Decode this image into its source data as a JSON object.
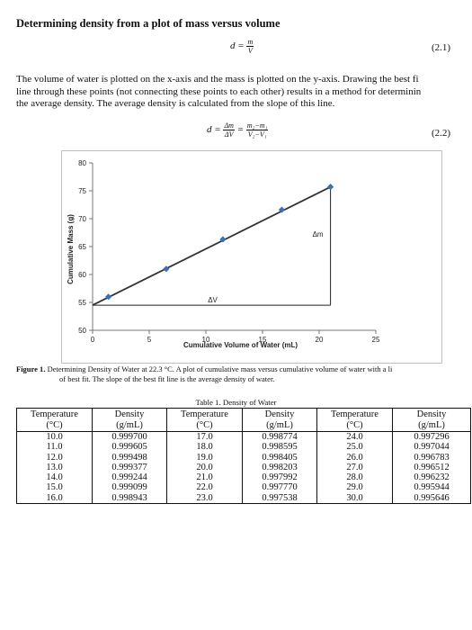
{
  "heading": "Determining density from a plot of mass versus volume",
  "eq1": {
    "lhs": "d =",
    "num": "m",
    "den": "V",
    "number": "(2.1)"
  },
  "paragraph": [
    "The volume of water is plotted on the x-axis and the mass is plotted on the y-axis. Drawing the best fi",
    "line through these points (not connecting these points to each other) results in a method for determinin",
    "the average density. The average density is calculated from the slope of this line."
  ],
  "eq2": {
    "lhs": "d =",
    "num1": "Δm",
    "den1": "ΔV",
    "eqsign": "=",
    "num2": "m₂−m₁",
    "den2": "V₂−V₁",
    "number": "(2.2)"
  },
  "chart_data": {
    "type": "scatter",
    "xlabel": "Cumulative Volume of Water (mL)",
    "ylabel": "Cumulative Mass (g)",
    "xlim": [
      0,
      25
    ],
    "ylim": [
      50,
      80
    ],
    "xticks": [
      0,
      5,
      10,
      15,
      20,
      25
    ],
    "yticks": [
      50,
      55,
      60,
      65,
      70,
      75,
      80
    ],
    "grid": false,
    "points": [
      {
        "x": 1.4,
        "y": 56.0
      },
      {
        "x": 6.5,
        "y": 61.0
      },
      {
        "x": 11.5,
        "y": 66.3
      },
      {
        "x": 16.7,
        "y": 71.6
      },
      {
        "x": 21.0,
        "y": 75.7
      }
    ],
    "fit_line": {
      "x": [
        0,
        21.0
      ],
      "y": [
        54.5,
        75.7
      ]
    },
    "triangle": {
      "x1": 0,
      "x2": 21.0,
      "y1": 54.5,
      "y2": 75.7
    },
    "annotations": {
      "dv": "ΔV",
      "dm": "Δm"
    }
  },
  "caption": {
    "label": "Figure 1.",
    "line1": " Determining Density of Water at 22.3 °C. A plot of cumulative mass versus cumulative volume of water with a li",
    "line2": "of best fit. The slope of the best fit line is the average density of water."
  },
  "table": {
    "title": "Table 1. Density of Water",
    "headers": [
      {
        "temp": [
          "Temperature",
          "(°C)"
        ],
        "dens": [
          "Density",
          "(g/mL)"
        ]
      },
      {
        "temp": [
          "Temperature",
          "(°C)"
        ],
        "dens": [
          "Density",
          "(g/mL)"
        ]
      },
      {
        "temp": [
          "Temperature",
          "(°C)"
        ],
        "dens": [
          "Density",
          "(g/mL)"
        ]
      }
    ],
    "groups": [
      {
        "temps": [
          "10.0",
          "11.0",
          "12.0",
          "13.0",
          "14.0",
          "15.0",
          "16.0"
        ],
        "dens": [
          "0.999700",
          "0.999605",
          "0.999498",
          "0.999377",
          "0.999244",
          "0.999099",
          "0.998943"
        ]
      },
      {
        "temps": [
          "17.0",
          "18.0",
          "19.0",
          "20.0",
          "21.0",
          "22.0",
          "23.0"
        ],
        "dens": [
          "0.998774",
          "0.998595",
          "0.998405",
          "0.998203",
          "0.997992",
          "0.997770",
          "0.997538"
        ]
      },
      {
        "temps": [
          "24.0",
          "25.0",
          "26.0",
          "27.0",
          "28.0",
          "29.0",
          "30.0"
        ],
        "dens": [
          "0.997296",
          "0.997044",
          "0.996783",
          "0.996512",
          "0.996232",
          "0.995944",
          "0.995646"
        ]
      }
    ]
  }
}
